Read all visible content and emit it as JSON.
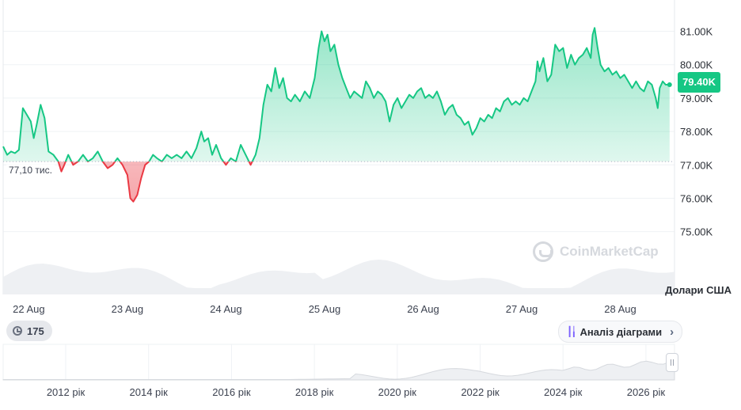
{
  "chart_data": {
    "type": "area",
    "currency_label": "Долари США",
    "current_price_label": "79.40K",
    "baseline_label": "77,10 тис.",
    "baseline_value": 77.1,
    "ylim": [
      74.4,
      81.7
    ],
    "y_ticks": [
      "81.00K",
      "80.00K",
      "79.00K",
      "78.00K",
      "77.00K",
      "76.00K",
      "75.00K"
    ],
    "y_tick_values": [
      81,
      80,
      79,
      78,
      77,
      76,
      75
    ],
    "x_ticks": [
      "22 Aug",
      "23 Aug",
      "24 Aug",
      "25 Aug",
      "26 Aug",
      "27 Aug",
      "28 Aug"
    ],
    "x_tick_positions": [
      0.5,
      1.5,
      2.5,
      3.5,
      4.5,
      5.5,
      6.5
    ],
    "x_range": [
      0.24,
      7.05
    ],
    "series": [
      {
        "values": [
          [
            0.24,
            77.55
          ],
          [
            0.28,
            77.3
          ],
          [
            0.32,
            77.4
          ],
          [
            0.36,
            77.35
          ],
          [
            0.4,
            77.45
          ],
          [
            0.44,
            78.7
          ],
          [
            0.48,
            78.5
          ],
          [
            0.52,
            78.3
          ],
          [
            0.55,
            77.8
          ],
          [
            0.58,
            78.2
          ],
          [
            0.62,
            78.8
          ],
          [
            0.66,
            78.4
          ],
          [
            0.7,
            77.4
          ],
          [
            0.75,
            77.3
          ],
          [
            0.8,
            77.1
          ],
          [
            0.83,
            76.8
          ],
          [
            0.86,
            77.0
          ],
          [
            0.9,
            77.3
          ],
          [
            0.95,
            77.0
          ],
          [
            1.0,
            77.1
          ],
          [
            1.05,
            77.3
          ],
          [
            1.1,
            77.1
          ],
          [
            1.15,
            77.2
          ],
          [
            1.2,
            77.4
          ],
          [
            1.25,
            77.1
          ],
          [
            1.3,
            76.9
          ],
          [
            1.35,
            77.0
          ],
          [
            1.4,
            77.2
          ],
          [
            1.45,
            77.0
          ],
          [
            1.5,
            76.7
          ],
          [
            1.53,
            76.0
          ],
          [
            1.56,
            75.9
          ],
          [
            1.6,
            76.1
          ],
          [
            1.64,
            76.6
          ],
          [
            1.68,
            77.0
          ],
          [
            1.72,
            77.1
          ],
          [
            1.76,
            77.3
          ],
          [
            1.8,
            77.2
          ],
          [
            1.85,
            77.1
          ],
          [
            1.9,
            77.3
          ],
          [
            1.95,
            77.2
          ],
          [
            2.0,
            77.3
          ],
          [
            2.05,
            77.2
          ],
          [
            2.1,
            77.4
          ],
          [
            2.15,
            77.2
          ],
          [
            2.2,
            77.5
          ],
          [
            2.25,
            78.0
          ],
          [
            2.28,
            77.7
          ],
          [
            2.32,
            77.8
          ],
          [
            2.36,
            77.3
          ],
          [
            2.4,
            77.6
          ],
          [
            2.45,
            77.2
          ],
          [
            2.5,
            77.0
          ],
          [
            2.55,
            77.2
          ],
          [
            2.6,
            77.1
          ],
          [
            2.65,
            77.6
          ],
          [
            2.7,
            77.3
          ],
          [
            2.75,
            77.0
          ],
          [
            2.8,
            77.3
          ],
          [
            2.84,
            77.8
          ],
          [
            2.88,
            78.8
          ],
          [
            2.92,
            79.4
          ],
          [
            2.96,
            79.2
          ],
          [
            3.0,
            79.9
          ],
          [
            3.04,
            79.3
          ],
          [
            3.08,
            79.6
          ],
          [
            3.12,
            79.0
          ],
          [
            3.16,
            78.9
          ],
          [
            3.2,
            79.1
          ],
          [
            3.25,
            78.9
          ],
          [
            3.3,
            79.2
          ],
          [
            3.35,
            79.0
          ],
          [
            3.4,
            79.6
          ],
          [
            3.44,
            80.5
          ],
          [
            3.47,
            81.0
          ],
          [
            3.5,
            80.7
          ],
          [
            3.53,
            80.9
          ],
          [
            3.56,
            80.4
          ],
          [
            3.6,
            80.6
          ],
          [
            3.64,
            80.0
          ],
          [
            3.68,
            79.6
          ],
          [
            3.72,
            79.3
          ],
          [
            3.76,
            79.0
          ],
          [
            3.8,
            79.2
          ],
          [
            3.84,
            79.1
          ],
          [
            3.88,
            79.0
          ],
          [
            3.92,
            79.5
          ],
          [
            3.96,
            79.3
          ],
          [
            4.0,
            79.0
          ],
          [
            4.04,
            79.2
          ],
          [
            4.08,
            79.1
          ],
          [
            4.12,
            78.9
          ],
          [
            4.16,
            78.3
          ],
          [
            4.2,
            78.8
          ],
          [
            4.24,
            79.0
          ],
          [
            4.28,
            78.7
          ],
          [
            4.32,
            78.9
          ],
          [
            4.36,
            79.1
          ],
          [
            4.4,
            79.0
          ],
          [
            4.44,
            79.2
          ],
          [
            4.48,
            79.3
          ],
          [
            4.52,
            79.0
          ],
          [
            4.56,
            79.1
          ],
          [
            4.6,
            79.0
          ],
          [
            4.64,
            79.2
          ],
          [
            4.68,
            78.9
          ],
          [
            4.72,
            78.5
          ],
          [
            4.76,
            78.7
          ],
          [
            4.8,
            78.8
          ],
          [
            4.84,
            78.5
          ],
          [
            4.88,
            78.4
          ],
          [
            4.92,
            78.2
          ],
          [
            4.96,
            78.3
          ],
          [
            5.0,
            77.9
          ],
          [
            5.04,
            78.1
          ],
          [
            5.08,
            78.4
          ],
          [
            5.12,
            78.3
          ],
          [
            5.16,
            78.5
          ],
          [
            5.2,
            78.4
          ],
          [
            5.24,
            78.7
          ],
          [
            5.28,
            78.6
          ],
          [
            5.32,
            78.9
          ],
          [
            5.36,
            79.0
          ],
          [
            5.4,
            78.8
          ],
          [
            5.44,
            78.9
          ],
          [
            5.48,
            78.8
          ],
          [
            5.52,
            79.0
          ],
          [
            5.56,
            78.9
          ],
          [
            5.6,
            79.2
          ],
          [
            5.64,
            79.5
          ],
          [
            5.66,
            80.1
          ],
          [
            5.68,
            79.8
          ],
          [
            5.72,
            80.2
          ],
          [
            5.76,
            79.5
          ],
          [
            5.8,
            79.7
          ],
          [
            5.84,
            80.6
          ],
          [
            5.88,
            80.4
          ],
          [
            5.92,
            80.5
          ],
          [
            5.96,
            79.9
          ],
          [
            6.0,
            80.3
          ],
          [
            6.04,
            80.0
          ],
          [
            6.08,
            80.2
          ],
          [
            6.12,
            80.3
          ],
          [
            6.16,
            80.5
          ],
          [
            6.2,
            80.2
          ],
          [
            6.22,
            80.9
          ],
          [
            6.24,
            81.1
          ],
          [
            6.27,
            80.5
          ],
          [
            6.3,
            80.0
          ],
          [
            6.34,
            79.8
          ],
          [
            6.38,
            79.9
          ],
          [
            6.42,
            79.7
          ],
          [
            6.46,
            79.8
          ],
          [
            6.5,
            79.6
          ],
          [
            6.54,
            79.7
          ],
          [
            6.58,
            79.5
          ],
          [
            6.62,
            79.3
          ],
          [
            6.66,
            79.5
          ],
          [
            6.7,
            79.3
          ],
          [
            6.74,
            79.2
          ],
          [
            6.78,
            79.5
          ],
          [
            6.82,
            79.4
          ],
          [
            6.86,
            79.0
          ],
          [
            6.88,
            78.7
          ],
          [
            6.9,
            79.3
          ],
          [
            6.93,
            79.5
          ],
          [
            6.96,
            79.4
          ],
          [
            7.0,
            79.4
          ]
        ]
      }
    ],
    "navigator": {
      "labels": [
        "2012 рік",
        "2014 рік",
        "2016 рік",
        "2018 рік",
        "2020 рік",
        "2022 рік",
        "2024 рік",
        "2026 рік"
      ]
    }
  },
  "ui": {
    "watermark": "CoinMarketCap",
    "history_count": "175",
    "analysis_button": "Аналіз діаграми"
  },
  "colors": {
    "up": "#16c784",
    "down": "#ea3943",
    "grid": "#eff2f5",
    "baseline": "#a6b0c3"
  }
}
